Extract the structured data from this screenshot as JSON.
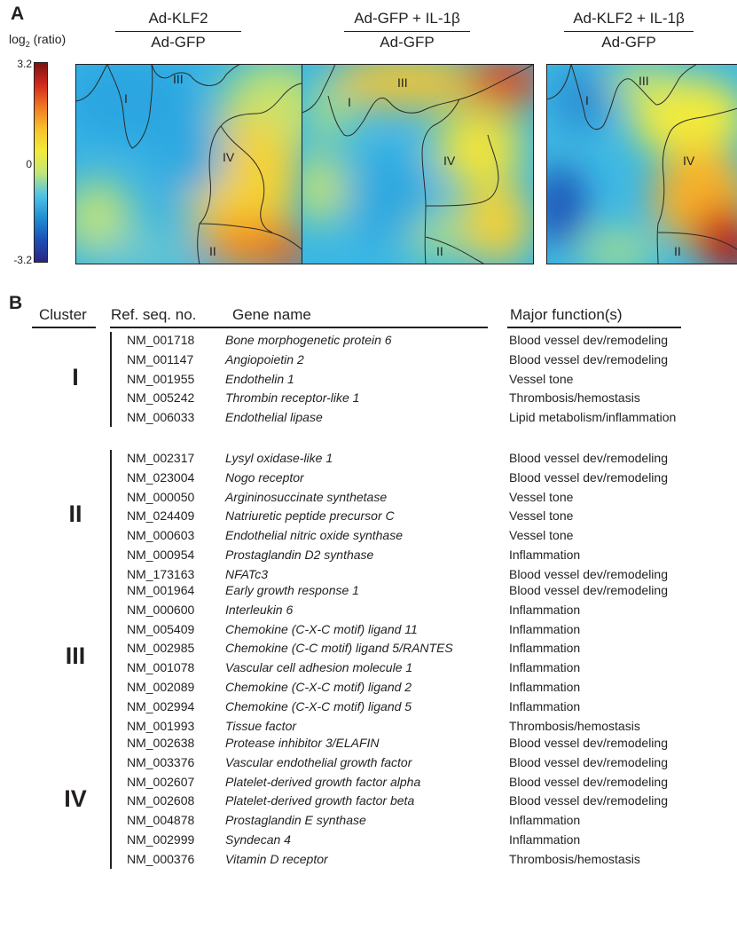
{
  "panel_a": {
    "letter": "A",
    "scale": {
      "title_main": "log",
      "title_sub": "2",
      "title_tail": " (ratio)",
      "max": "3.2",
      "mid": "0",
      "min": "-3.2",
      "colors": [
        "#7a1410",
        "#d42a1e",
        "#f07a22",
        "#f7c22b",
        "#f2ec3a",
        "#bfe57a",
        "#4fc3e8",
        "#1f8fd2",
        "#1c50b6",
        "#2b2584"
      ]
    },
    "maps": [
      {
        "numerator": "Ad-KLF2",
        "denominator": "Ad-GFP",
        "regions": {
          "r1": "I",
          "r2": "II",
          "r3": "III",
          "r4": "IV"
        }
      },
      {
        "numerator": "Ad-GFP + IL-1β",
        "denominator": "Ad-GFP",
        "regions": {
          "r1": "I",
          "r2": "II",
          "r3": "III",
          "r4": "IV"
        }
      },
      {
        "numerator": "Ad-KLF2 + IL-1β",
        "denominator": "Ad-GFP",
        "regions": {
          "r1": "I",
          "r2": "II",
          "r3": "III",
          "r4": "IV"
        }
      }
    ]
  },
  "panel_b": {
    "letter": "B",
    "headers": {
      "cluster": "Cluster",
      "ref": "Ref. seq. no.",
      "gene": "Gene name",
      "function": "Major function(s)"
    },
    "clusters": [
      {
        "label": "I",
        "rows": [
          {
            "ref": "NM_001718",
            "gene": "Bone morphogenetic protein 6",
            "function": "Blood vessel dev/remodeling"
          },
          {
            "ref": "NM_001147",
            "gene": "Angiopoietin 2",
            "function": "Blood vessel dev/remodeling"
          },
          {
            "ref": "NM_001955",
            "gene": "Endothelin 1",
            "function": "Vessel tone"
          },
          {
            "ref": "NM_005242",
            "gene": "Thrombin receptor-like 1",
            "function": "Thrombosis/hemostasis"
          },
          {
            "ref": "NM_006033",
            "gene": "Endothelial lipase",
            "function": "Lipid metabolism/inflammation"
          }
        ]
      },
      {
        "label": "II",
        "rows": [
          {
            "ref": "NM_002317",
            "gene": "Lysyl oxidase-like 1",
            "function": "Blood vessel dev/remodeling"
          },
          {
            "ref": "NM_023004",
            "gene": "Nogo receptor",
            "function": "Blood vessel dev/remodeling"
          },
          {
            "ref": "NM_000050",
            "gene": "Argininosuccinate synthetase",
            "function": "Vessel tone"
          },
          {
            "ref": "NM_024409",
            "gene": "Natriuretic peptide precursor C",
            "function": "Vessel tone"
          },
          {
            "ref": "NM_000603",
            "gene": "Endothelial nitric oxide synthase",
            "function": "Vessel tone"
          },
          {
            "ref": "NM_000954",
            "gene": "Prostaglandin D2 synthase",
            "function": "Inflammation"
          },
          {
            "ref": "NM_173163",
            "gene": "NFATc3",
            "function": "Blood vessel dev/remodeling"
          }
        ]
      },
      {
        "label": "III",
        "rows": [
          {
            "ref": "NM_001964",
            "gene": "Early growth response 1",
            "function": "Blood vessel dev/remodeling"
          },
          {
            "ref": "NM_000600",
            "gene": "Interleukin 6",
            "function": "Inflammation"
          },
          {
            "ref": "NM_005409",
            "gene": "Chemokine (C-X-C motif) ligand 11",
            "function": "Inflammation"
          },
          {
            "ref": "NM_002985",
            "gene": "Chemokine (C-C motif) ligand 5/RANTES",
            "function": "Inflammation"
          },
          {
            "ref": "NM_001078",
            "gene": "Vascular cell adhesion molecule 1",
            "function": "Inflammation"
          },
          {
            "ref": "NM_002089",
            "gene": "Chemokine (C-X-C motif) ligand 2",
            "function": "Inflammation"
          },
          {
            "ref": "NM_002994",
            "gene": "Chemokine (C-X-C motif) ligand 5",
            "function": "Inflammation"
          },
          {
            "ref": "NM_001993",
            "gene": "Tissue factor",
            "function": "Thrombosis/hemostasis"
          }
        ]
      },
      {
        "label": "IV",
        "rows": [
          {
            "ref": "NM_002638",
            "gene": "Protease inhibitor 3/ELAFIN",
            "function": "Blood vessel dev/remodeling"
          },
          {
            "ref": "NM_003376",
            "gene": "Vascular endothelial growth factor",
            "function": "Blood vessel dev/remodeling"
          },
          {
            "ref": "NM_002607",
            "gene": "Platelet-derived growth factor alpha",
            "function": "Blood vessel dev/remodeling"
          },
          {
            "ref": "NM_002608",
            "gene": "Platelet-derived growth factor beta",
            "function": "Blood vessel dev/remodeling"
          },
          {
            "ref": "NM_004878",
            "gene": "Prostaglandin E synthase",
            "function": "Inflammation"
          },
          {
            "ref": "NM_002999",
            "gene": "Syndecan 4",
            "function": "Inflammation"
          },
          {
            "ref": "NM_000376",
            "gene": "Vitamin D receptor",
            "function": "Thrombosis/hemostasis"
          }
        ]
      }
    ]
  }
}
